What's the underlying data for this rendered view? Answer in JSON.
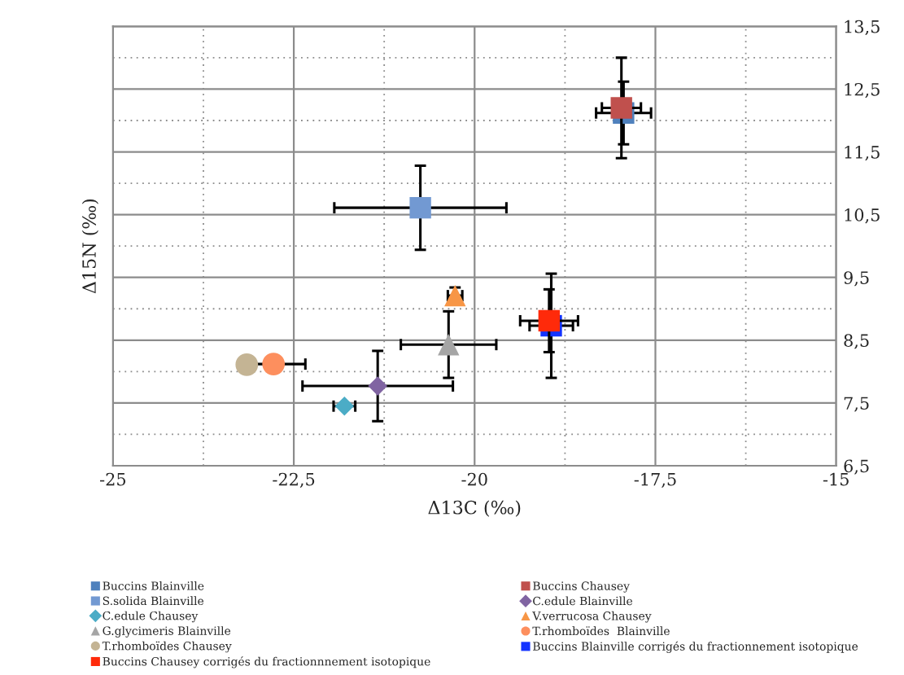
{
  "chart_data": {
    "type": "scatter",
    "xlabel": "Δ13C (‰)",
    "ylabel": "Δ15N (‰)",
    "xlim": [
      -25,
      -15
    ],
    "ylim": [
      6.5,
      13.5
    ],
    "xticks": [
      -25,
      {
        "value": -23.75,
        "label": null
      },
      {
        "value": -22.5,
        "label": "-22,5"
      },
      {
        "value": -21.25,
        "label": null
      },
      -20,
      {
        "value": -18.75,
        "label": null
      },
      {
        "value": -17.5,
        "label": "-17,5"
      },
      {
        "value": -16.25,
        "label": null
      },
      -15
    ],
    "yticks": [
      {
        "value": 6.5,
        "label": "6,5"
      },
      {
        "value": 7,
        "label": null
      },
      {
        "value": 7.5,
        "label": "7,5"
      },
      {
        "value": 8,
        "label": null
      },
      {
        "value": 8.5,
        "label": "8,5"
      },
      {
        "value": 9,
        "label": null
      },
      {
        "value": 9.5,
        "label": "9,5"
      },
      {
        "value": 10,
        "label": null
      },
      {
        "value": 10.5,
        "label": "10,5"
      },
      {
        "value": 11,
        "label": null
      },
      {
        "value": 11.5,
        "label": "11,5"
      },
      {
        "value": 12,
        "label": null
      },
      {
        "value": 12.5,
        "label": "12,5"
      },
      {
        "value": 13,
        "label": null
      },
      {
        "value": 13.5,
        "label": "13,5"
      }
    ],
    "grid": true,
    "legend": "bottom",
    "series": [
      {
        "name": "Buccins Blainville",
        "marker": "square",
        "color": "#4f81bd",
        "x": [
          -17.94
        ],
        "values": [
          12.12
        ],
        "errors": [
          0.5
        ],
        "xerrors": [
          0.38
        ]
      },
      {
        "name": "Buccins Chausey",
        "marker": "square",
        "color": "#c0504d",
        "x": [
          -17.97
        ],
        "values": [
          12.2
        ],
        "errors": [
          0.8
        ],
        "xerrors": [
          0.27
        ]
      },
      {
        "name": "S.solida Blainville",
        "marker": "square",
        "color": "#7299d2",
        "x": [
          -20.75
        ],
        "values": [
          10.61
        ],
        "errors": [
          0.67
        ],
        "xerrors": [
          1.19
        ]
      },
      {
        "name": "C.edule Blainville",
        "marker": "diamond",
        "color": "#8064a2",
        "x": [
          -21.34
        ],
        "values": [
          7.77
        ],
        "errors": [
          0.56
        ],
        "xerrors": [
          1.04
        ]
      },
      {
        "name": "C.edule Chausey",
        "marker": "diamond",
        "color": "#4bacc6",
        "x": [
          -21.8
        ],
        "values": [
          7.45
        ],
        "errors": [
          null
        ],
        "xerrors": [
          0.15
        ]
      },
      {
        "name": "V.verrucosa Chausey",
        "marker": "triangle",
        "color": "#f79646",
        "x": [
          -20.27
        ],
        "values": [
          9.21
        ],
        "errors": [
          0.13
        ],
        "xerrors": [
          0.1
        ]
      },
      {
        "name": "G.glycimeris Blainville",
        "marker": "triangle",
        "color": "#a5a5a5",
        "x": [
          -20.36
        ],
        "values": [
          8.43
        ],
        "errors": [
          0.53
        ],
        "xerrors": [
          0.66
        ]
      },
      {
        "name": "T.rhomboïdes  Blainville",
        "marker": "circle",
        "color": "#fd8f5e",
        "x": [
          -22.78
        ],
        "values": [
          8.12
        ],
        "errors": [
          null
        ],
        "xerrors": [
          0.44
        ]
      },
      {
        "name": "T.rhomboïdes Chausey",
        "marker": "circle",
        "color": "#c4b494",
        "x": [
          -23.15
        ],
        "values": [
          8.11
        ],
        "errors": [
          null
        ],
        "xerrors": [
          null
        ]
      },
      {
        "name": "Buccins Blainville corrigés du fractionnement isotopique",
        "marker": "square",
        "color": "#1433ff",
        "x": [
          -18.94
        ],
        "values": [
          8.73
        ],
        "errors": [
          0.83
        ],
        "xerrors": [
          0.3
        ]
      },
      {
        "name": "Buccins Chausey corrigés du fractionnnement isotopique",
        "marker": "square",
        "color": "#ff2a0a",
        "x": [
          -18.97
        ],
        "values": [
          8.81
        ],
        "errors": [
          0.5
        ],
        "xerrors": [
          0.4
        ]
      }
    ]
  }
}
